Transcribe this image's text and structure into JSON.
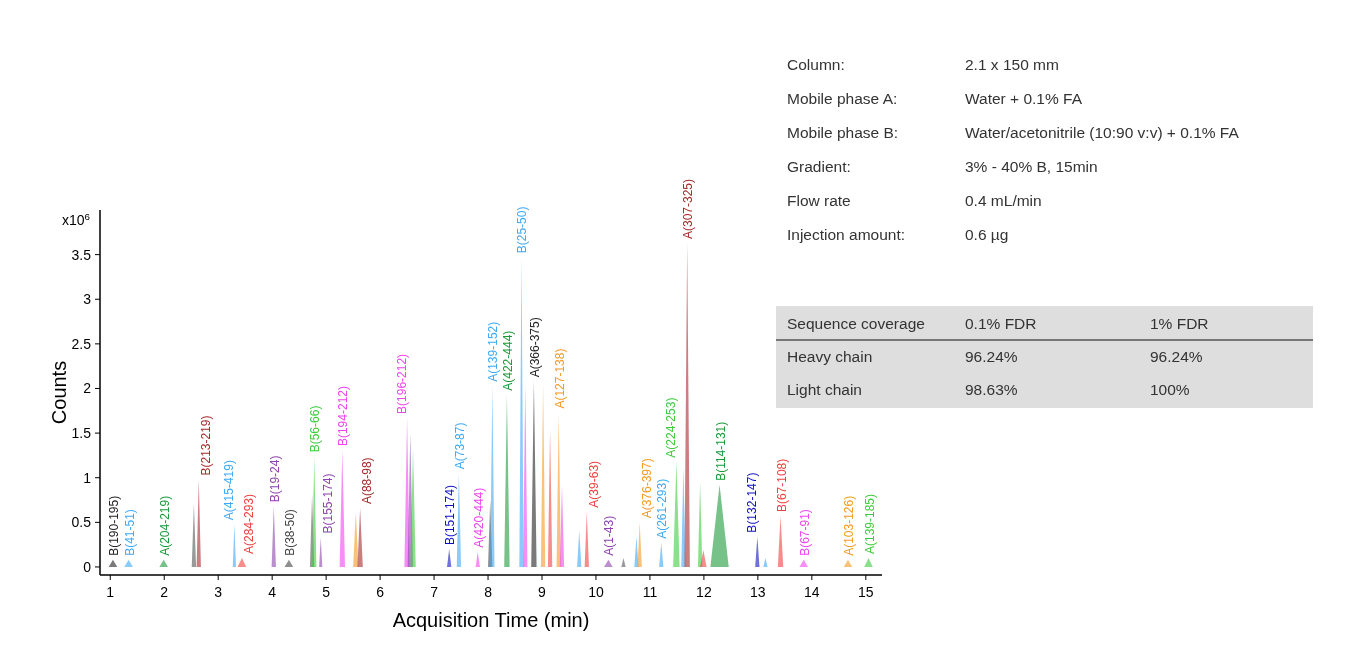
{
  "chart_data": {
    "type": "area",
    "xlabel": "Acquisition Time (min)",
    "ylabel": "Counts",
    "xlim": [
      0.81,
      15.3
    ],
    "ylim": [
      -0.09,
      4.0
    ],
    "xticks": [
      1,
      2,
      3,
      4,
      5,
      6,
      7,
      8,
      9,
      10,
      11,
      12,
      13,
      14,
      15
    ],
    "yticks": [
      0,
      0.5,
      1,
      1.5,
      2,
      2.5,
      3,
      3.5
    ],
    "grid": false,
    "legend": false,
    "annotations": [
      "x10$^{6}$",
      "Column:",
      "2.1 x 150 mm",
      "Mobile phase A:",
      "Water + 0.1% FA",
      "Mobile phase B:",
      "Water/acetonitrile (10:90 v:v) + 0.1% FA",
      "Gradient:",
      "3% - 40% B, 15min",
      "Flow rate",
      "0.4 mL/min",
      "Injection amount:",
      "0.6 µg",
      "Sequence coverage",
      "0.1% FDR",
      "1% FDR",
      "Heavy chain",
      "96.24%",
      "96.24%",
      "Light chain",
      "98.63%",
      "100%"
    ],
    "series": [
      {
        "name": "B(190-195)",
        "color": "#222222",
        "x": [
          0.97,
          1.05,
          1.13
        ],
        "values": [
          0,
          0.08,
          0
        ]
      },
      {
        "name": "B(41-51)",
        "color": "#3da9f5",
        "x": [
          1.26,
          1.34,
          1.42
        ],
        "values": [
          0,
          0.08,
          0
        ]
      },
      {
        "name": "A(204-219)",
        "color": "#1a9a3a",
        "x": [
          1.91,
          1.99,
          2.07
        ],
        "values": [
          0,
          0.08,
          0
        ]
      },
      {
        "color": "#555555",
        "x": [
          2.51,
          2.55,
          2.59
        ],
        "values": [
          0,
          0.71,
          0
        ]
      },
      {
        "name": "B(213-219)",
        "color": "#a52a2a",
        "x": [
          2.6,
          2.64,
          2.68
        ],
        "values": [
          0,
          0.98,
          0
        ]
      },
      {
        "name": "A(415-419)",
        "color": "#3da9f5",
        "x": [
          3.27,
          3.3,
          3.33
        ],
        "values": [
          0,
          0.48,
          0
        ]
      },
      {
        "name": "A(284-293)",
        "color": "#f04040",
        "x": [
          3.36,
          3.44,
          3.52
        ],
        "values": [
          0,
          0.1,
          0
        ]
      },
      {
        "name": "B(19-24)",
        "color": "#8e44ad",
        "x": [
          3.99,
          4.03,
          4.07
        ],
        "values": [
          0,
          0.68,
          0
        ]
      },
      {
        "name": "B(38-50)",
        "color": "#444444",
        "x": [
          4.23,
          4.31,
          4.39
        ],
        "values": [
          0,
          0.08,
          0
        ]
      },
      {
        "color": "#555555",
        "x": [
          4.7,
          4.74,
          4.78
        ],
        "values": [
          0,
          0.81,
          0
        ]
      },
      {
        "name": "B(56-66)",
        "color": "#3dcc3d",
        "x": [
          4.74,
          4.78,
          4.82
        ],
        "values": [
          0,
          1.24,
          0
        ]
      },
      {
        "name": "B(155-174)",
        "color": "#8e44ad",
        "x": [
          4.87,
          4.9,
          4.93
        ],
        "values": [
          0,
          0.33,
          0
        ]
      },
      {
        "name": "B(194-212)",
        "color": "#ee44ee",
        "x": [
          5.25,
          5.3,
          5.35
        ],
        "values": [
          0,
          1.31,
          0
        ]
      },
      {
        "color": "#f59a23",
        "x": [
          5.5,
          5.55,
          5.6
        ],
        "values": [
          0,
          0.61,
          0
        ]
      },
      {
        "name": "A(88-98)",
        "color": "#a52a2a",
        "x": [
          5.58,
          5.63,
          5.68
        ],
        "values": [
          0,
          0.66,
          0
        ]
      },
      {
        "name": "B(196-212)",
        "color": "#ee44ee",
        "x": [
          6.45,
          6.5,
          6.55
        ],
        "values": [
          0,
          1.67,
          0
        ]
      },
      {
        "color": "#8e44ad",
        "x": [
          6.51,
          6.56,
          6.61
        ],
        "values": [
          0,
          1.5,
          0
        ]
      },
      {
        "color": "#3dcc3d",
        "x": [
          6.56,
          6.61,
          6.66
        ],
        "values": [
          0,
          1.32,
          0
        ]
      },
      {
        "name": "B(151-174)",
        "color": "#1010c0",
        "x": [
          7.24,
          7.28,
          7.32
        ],
        "values": [
          0,
          0.2,
          0
        ]
      },
      {
        "name": "A(73-87)",
        "color": "#3da9f5",
        "x": [
          7.42,
          7.46,
          7.5
        ],
        "values": [
          0,
          1.05,
          0
        ]
      },
      {
        "name": "A(420-444)",
        "color": "#ee44ee",
        "x": [
          7.77,
          7.81,
          7.85
        ],
        "values": [
          0,
          0.17,
          0
        ]
      },
      {
        "color": "#444444",
        "x": [
          8.0,
          8.04,
          8.08
        ],
        "values": [
          0,
          0.75,
          0
        ]
      },
      {
        "name": "A(139-152)",
        "color": "#3da9f5",
        "x": [
          8.04,
          8.08,
          8.12
        ],
        "values": [
          0,
          2.03,
          0
        ]
      },
      {
        "name": "A(422-444)",
        "color": "#1a9a3a",
        "x": [
          8.3,
          8.35,
          8.4
        ],
        "values": [
          0,
          1.93,
          0
        ]
      },
      {
        "name": "B(25-50)",
        "color": "#3da9f5",
        "x": [
          8.58,
          8.62,
          8.66
        ],
        "values": [
          0,
          3.47,
          0
        ]
      },
      {
        "color": "#ee44ee",
        "x": [
          8.65,
          8.69,
          8.73
        ],
        "values": [
          0,
          2.05,
          0
        ]
      },
      {
        "name": "A(366-375)",
        "color": "#222222",
        "x": [
          8.8,
          8.85,
          8.9
        ],
        "values": [
          0,
          2.08,
          0
        ]
      },
      {
        "color": "#f59a23",
        "x": [
          8.98,
          9.02,
          9.06
        ],
        "values": [
          0,
          2.05,
          0
        ]
      },
      {
        "color": "#f04040",
        "x": [
          9.11,
          9.15,
          9.19
        ],
        "values": [
          0,
          1.54,
          0
        ]
      },
      {
        "name": "A(127-138)",
        "color": "#f59a23",
        "x": [
          9.27,
          9.31,
          9.35
        ],
        "values": [
          0,
          1.73,
          0
        ]
      },
      {
        "color": "#ee44ee",
        "x": [
          9.33,
          9.37,
          9.41
        ],
        "values": [
          0,
          0.92,
          0
        ]
      },
      {
        "color": "#3da9f5",
        "x": [
          9.65,
          9.69,
          9.73
        ],
        "values": [
          0,
          0.41,
          0
        ]
      },
      {
        "name": "A(39-63)",
        "color": "#f04040",
        "x": [
          9.79,
          9.83,
          9.87
        ],
        "values": [
          0,
          0.62,
          0
        ]
      },
      {
        "name": "A(1-43)",
        "color": "#8e44ad",
        "x": [
          10.15,
          10.23,
          10.31
        ],
        "values": [
          0,
          0.08,
          0
        ]
      },
      {
        "color": "#555555",
        "x": [
          10.47,
          10.51,
          10.55
        ],
        "values": [
          0,
          0.1,
          0
        ]
      },
      {
        "color": "#3da9f5",
        "x": [
          10.71,
          10.75,
          10.79
        ],
        "values": [
          0,
          0.34,
          0
        ]
      },
      {
        "name": "A(376-397)",
        "color": "#f59a23",
        "x": [
          10.77,
          10.81,
          10.85
        ],
        "values": [
          0,
          0.5,
          0
        ]
      },
      {
        "name": "A(261-293)",
        "color": "#3da9f5",
        "x": [
          11.17,
          11.21,
          11.25
        ],
        "values": [
          0,
          0.27,
          0
        ]
      },
      {
        "name": "A(224-253)",
        "color": "#3dcc3d",
        "x": [
          11.43,
          11.49,
          11.55
        ],
        "values": [
          0,
          1.18,
          0
        ]
      },
      {
        "color": "#3da9f5",
        "x": [
          11.58,
          11.62,
          11.66
        ],
        "values": [
          0,
          1.12,
          0
        ]
      },
      {
        "name": "A(307-325)",
        "color": "#a52a2a",
        "x": [
          11.64,
          11.69,
          11.74
        ],
        "values": [
          0,
          3.63,
          0
        ]
      },
      {
        "color": "#3dcc3d",
        "x": [
          11.89,
          11.93,
          11.97
        ],
        "values": [
          0,
          0.95,
          0
        ]
      },
      {
        "color": "#f04040",
        "x": [
          11.93,
          11.99,
          12.05
        ],
        "values": [
          0,
          0.19,
          0
        ]
      },
      {
        "name": "B(114-131)",
        "color": "#1a9a3a",
        "x": [
          12.12,
          12.29,
          12.46
        ],
        "values": [
          0,
          0.92,
          0
        ]
      },
      {
        "name": "B(132-147)",
        "color": "#1010c0",
        "x": [
          12.95,
          12.99,
          13.03
        ],
        "values": [
          0,
          0.34,
          0
        ]
      },
      {
        "color": "#3da9f5",
        "x": [
          13.1,
          13.14,
          13.18
        ],
        "values": [
          0,
          0.1,
          0
        ]
      },
      {
        "name": "B(67-108)",
        "color": "#f04040",
        "x": [
          13.37,
          13.42,
          13.47
        ],
        "values": [
          0,
          0.57,
          0
        ]
      },
      {
        "name": "B(67-91)",
        "color": "#ee44ee",
        "x": [
          13.77,
          13.85,
          13.93
        ],
        "values": [
          0,
          0.08,
          0
        ]
      },
      {
        "name": "A(103-126)",
        "color": "#f59a23",
        "x": [
          14.59,
          14.67,
          14.75
        ],
        "values": [
          0,
          0.08,
          0
        ]
      },
      {
        "name": "A(139-185)",
        "color": "#3dcc3d",
        "x": [
          14.97,
          15.05,
          15.13
        ],
        "values": [
          0,
          0.1,
          0
        ]
      }
    ]
  }
}
